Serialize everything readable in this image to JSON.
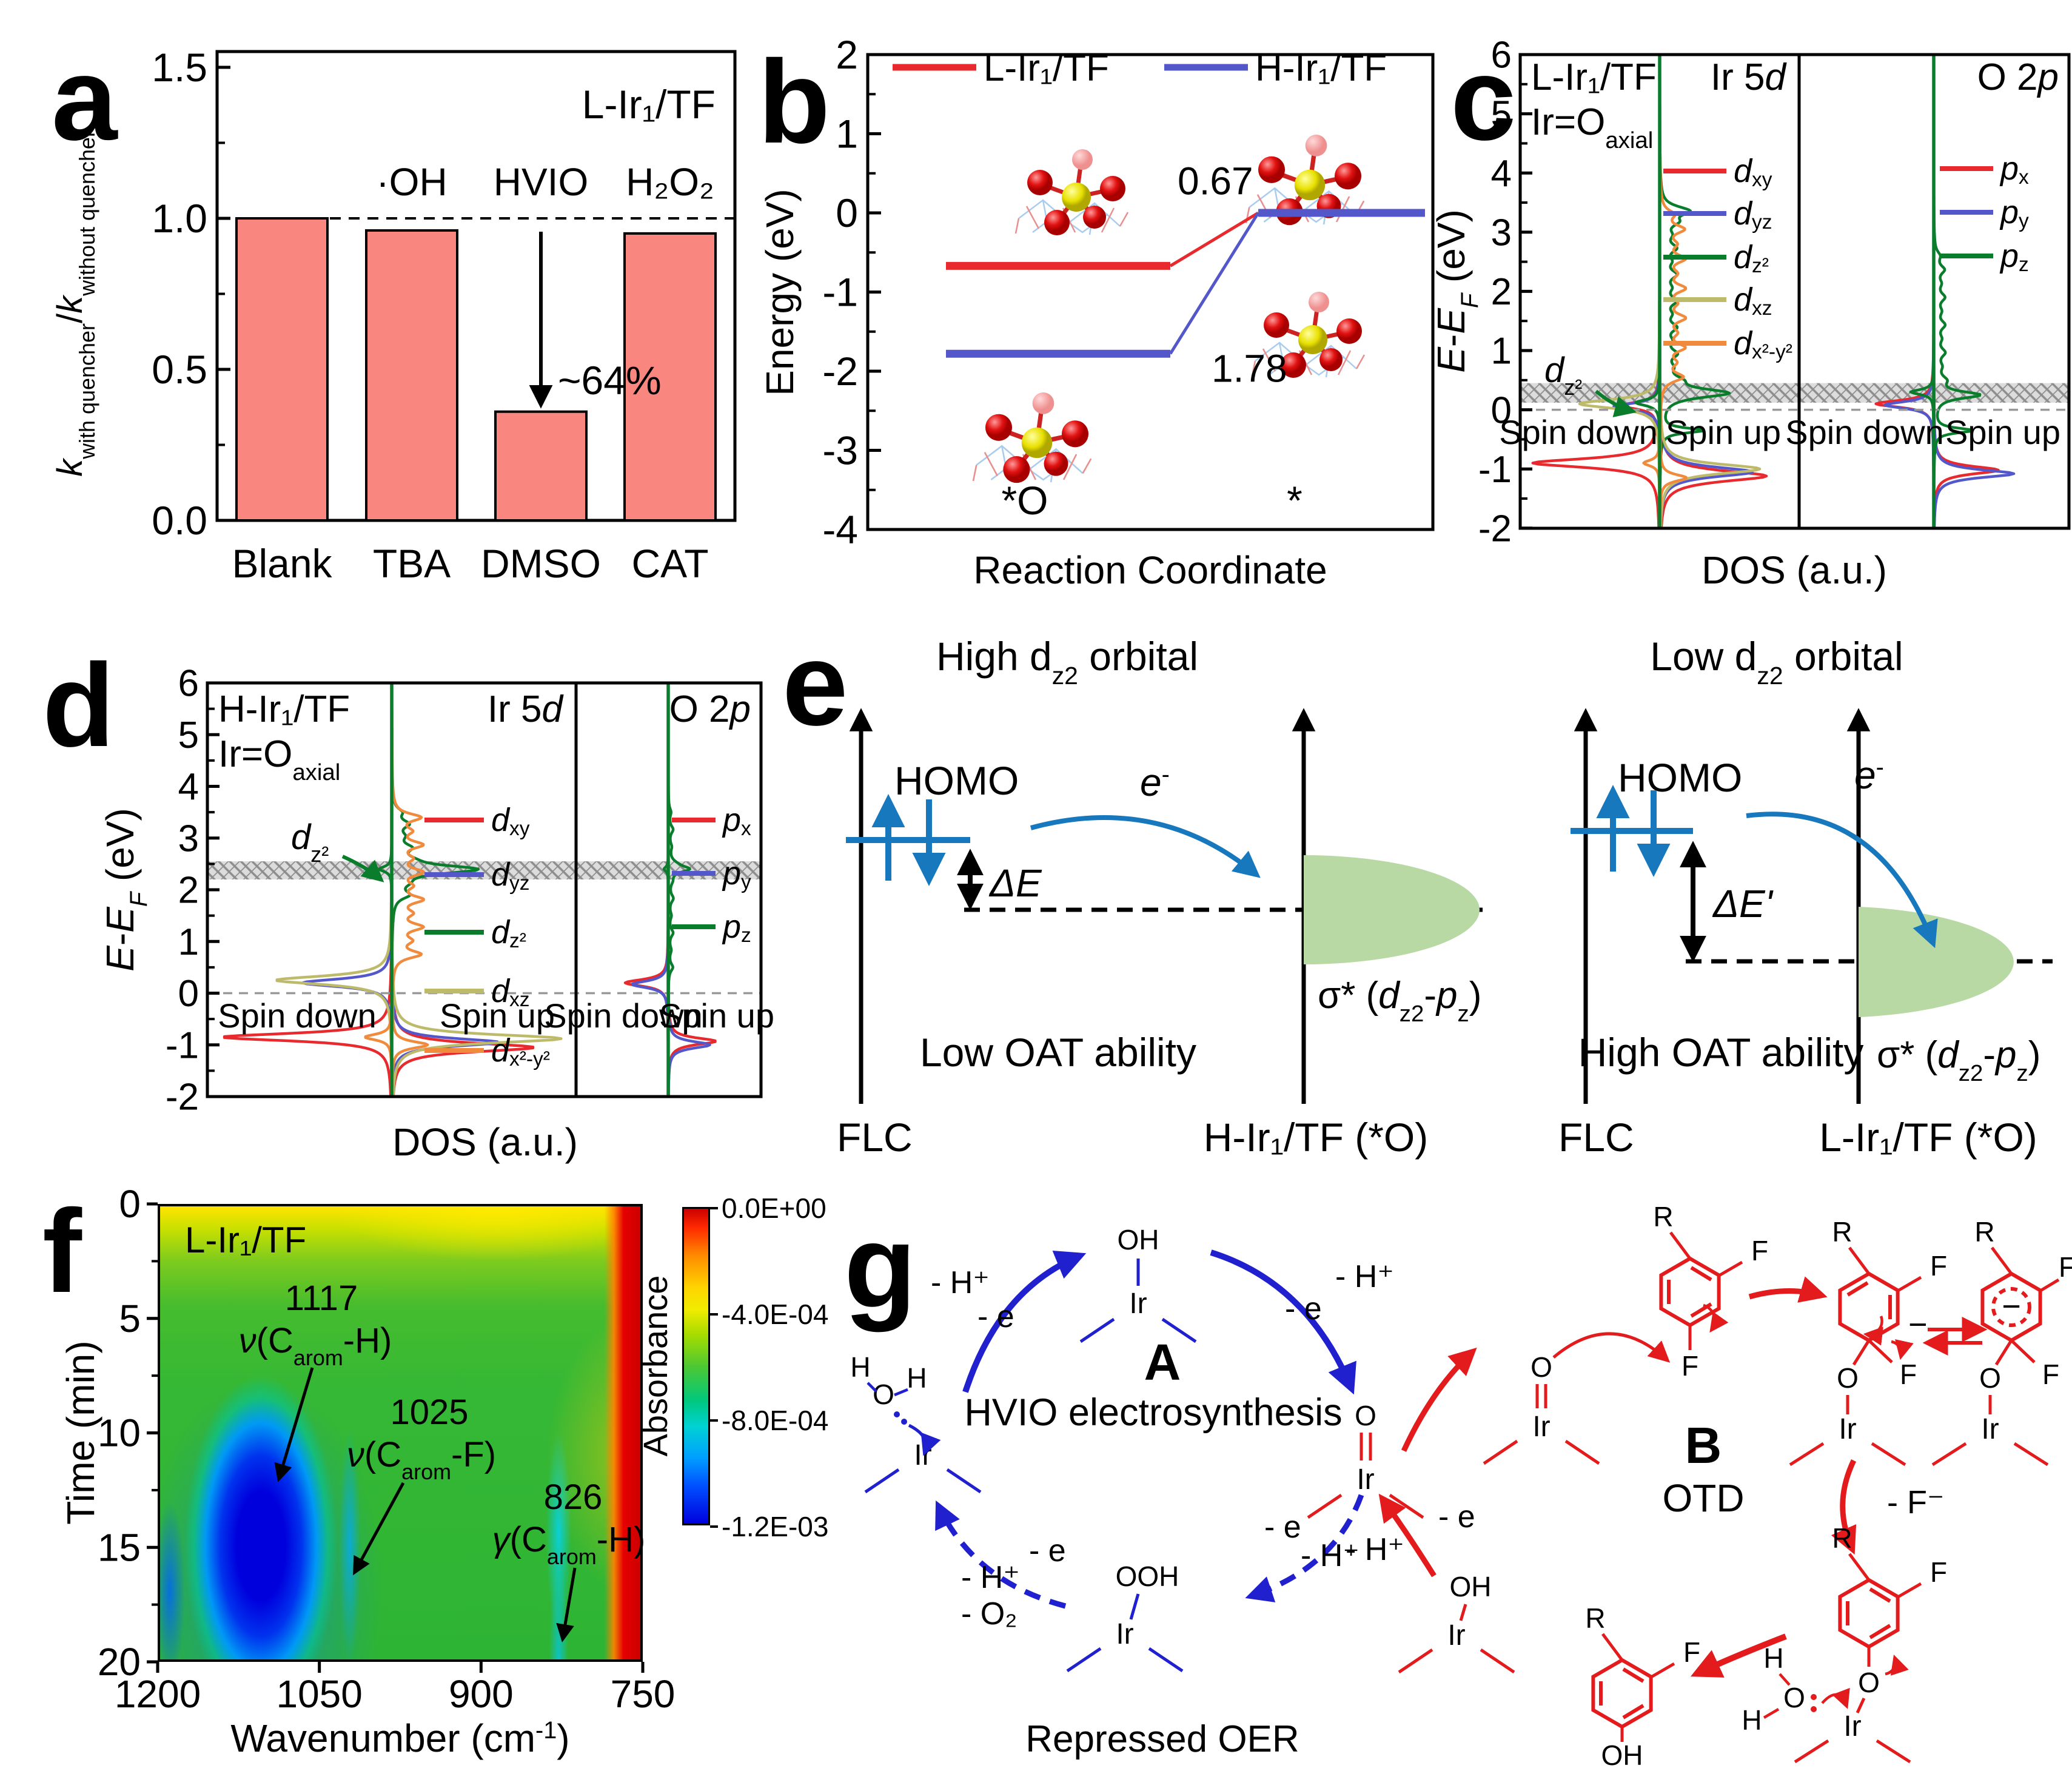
{
  "colors": {
    "bar": "#f9867f",
    "red": "#e8292d",
    "blue": "#5457c9",
    "green": "#0a7d2c",
    "olive": "#bdba6a",
    "orange": "#f08b3e",
    "gblue": "#2020cf",
    "gred": "#e31b1c",
    "eblue": "#1878be",
    "ellipse": "#b9d9a4",
    "hatch": "#9a9a9a"
  },
  "panels": {
    "a": {
      "letter": "a",
      "corner": "L-Ir₁/TF",
      "ylabel_parts": [
        {
          "t": "k",
          "i": true
        },
        {
          "t": "with quencher",
          "sub": true
        },
        {
          "t": "/"
        },
        {
          "t": "k",
          "i": true
        },
        {
          "t": "without quencher",
          "sub": true
        }
      ]
    },
    "b": {
      "letter": "b",
      "ylabel": "Energy (eV)",
      "xlabel": "Reaction Coordinate",
      "legend": [
        {
          "label": "L-Ir₁/TF"
        },
        {
          "label": "H-Ir₁/TF"
        }
      ],
      "state_labels": [
        "*O",
        "*"
      ]
    },
    "c": {
      "letter": "c",
      "corner1": "L-Ir₁/TF",
      "corner2_parts": [
        {
          "t": "Ir=O"
        },
        {
          "t": "axial",
          "sub": true
        }
      ],
      "sub1_title_parts": [
        {
          "t": "Ir 5"
        },
        {
          "t": "d",
          "i": true
        }
      ],
      "sub2_title_parts": [
        {
          "t": "O 2"
        },
        {
          "t": "p",
          "i": true
        }
      ],
      "spin_down": "Spin down",
      "spin_up": "Spin up",
      "dz2_parts": [
        {
          "t": "d",
          "i": true
        },
        {
          "t": "z²",
          "sub": true
        }
      ],
      "xlabel": "DOS (a.u.)",
      "ylabel_parts": [
        {
          "t": "E",
          "i": true
        },
        {
          "t": "-"
        },
        {
          "t": "E",
          "i": true
        },
        {
          "t": "F",
          "i": true,
          "sub": true
        },
        {
          "t": " (eV)"
        }
      ]
    },
    "d": {
      "letter": "d",
      "corner1": "H-Ir₁/TF",
      "corner2_parts": [
        {
          "t": "Ir=O"
        },
        {
          "t": "axial",
          "sub": true
        }
      ],
      "sub1_title_parts": [
        {
          "t": "Ir 5"
        },
        {
          "t": "d",
          "i": true
        }
      ],
      "sub2_title_parts": [
        {
          "t": "O 2"
        },
        {
          "t": "p",
          "i": true
        }
      ],
      "spin_down": "Spin down",
      "spin_up": "Spin up",
      "dz2_parts": [
        {
          "t": "d",
          "i": true
        },
        {
          "t": "z²",
          "sub": true
        }
      ],
      "xlabel": "DOS (a.u.)",
      "ylabel_parts": [
        {
          "t": "E",
          "i": true
        },
        {
          "t": "-"
        },
        {
          "t": "E",
          "i": true
        },
        {
          "t": "F",
          "i": true,
          "sub": true
        },
        {
          "t": " (eV)"
        }
      ]
    },
    "e": {
      "letter": "e",
      "left": {
        "title_parts": [
          {
            "t": "High d"
          },
          {
            "t": "z2",
            "sub": true
          },
          {
            "t": " orbital"
          }
        ],
        "homo": "HOMO",
        "delta_parts": [
          {
            "t": "ΔE",
            "i": true
          }
        ],
        "electron_parts": [
          {
            "t": "e",
            "i": true
          },
          {
            "t": "-",
            "sup": true
          }
        ],
        "sigma_parts": [
          {
            "t": "σ* ("
          },
          {
            "t": "d",
            "i": true
          },
          {
            "t": "z2",
            "sub": true
          },
          {
            "t": "-"
          },
          {
            "t": "p",
            "i": true
          },
          {
            "t": "z",
            "sub": true
          },
          {
            "t": ")"
          }
        ],
        "ability": "Low OAT ability",
        "left_axis": "FLC",
        "right_axis": "H-Ir₁/TF (*O)"
      },
      "right": {
        "title_parts": [
          {
            "t": "Low d"
          },
          {
            "t": "z2",
            "sub": true
          },
          {
            "t": " orbital"
          }
        ],
        "homo": "HOMO",
        "delta_parts": [
          {
            "t": "ΔE'",
            "i": true
          }
        ],
        "electron_parts": [
          {
            "t": "e",
            "i": true
          },
          {
            "t": "-",
            "sup": true
          }
        ],
        "sigma_parts": [
          {
            "t": "σ* ("
          },
          {
            "t": "d",
            "i": true
          },
          {
            "t": "z2",
            "sub": true
          },
          {
            "t": "-"
          },
          {
            "t": "p",
            "i": true
          },
          {
            "t": "z",
            "sub": true
          },
          {
            "t": ")"
          }
        ],
        "ability": "High OAT ability",
        "left_axis": "FLC",
        "right_axis": "L-Ir₁/TF (*O)"
      }
    },
    "g": {
      "letter": "g",
      "cycle_a": {
        "label": "A",
        "title": "HVIO electrosynthesis",
        "bottom": "Repressed OER",
        "oh": "OH",
        "ir": "Ir",
        "o": "O",
        "ooh": "OOH",
        "h": "H",
        "steps": {
          "tl1": "- H⁺",
          "tl2": "- e",
          "tr1": "- H⁺",
          "tr2": "- e",
          "br1": "- e",
          "br2": "- H⁺",
          "bl1": "- e",
          "bl2": "- H⁺",
          "bl3": "- O₂"
        }
      },
      "cycle_b": {
        "label": "B",
        "title": "OTD",
        "minus_f": "- F⁻",
        "step_e": "- e",
        "step_h": "- H⁺",
        "r": "R",
        "f": "F",
        "o": "O",
        "oh": "OH",
        "ir": "Ir",
        "h": "H",
        "minus": "−"
      }
    }
  },
  "chart_data": [
    {
      "id": "a",
      "type": "bar",
      "categories": [
        "Blank",
        "TBA",
        "DMSO",
        "CAT"
      ],
      "values": [
        1.0,
        0.96,
        0.36,
        0.95
      ],
      "ylim": [
        0,
        1.55
      ],
      "yticks": [
        0,
        0.5,
        1,
        1.5
      ],
      "ytick_labels": [
        "0.0",
        "0.5",
        "1.0",
        "1.5"
      ],
      "yminor": [
        0.25,
        0.75,
        1.25
      ],
      "reference_line": 1.0,
      "quencher_labels": [
        "·OH",
        "HVIO",
        "H₂O₂"
      ],
      "drop_annotation": "~64%",
      "sample_label": "L-Ir₁/TF",
      "ylabel": "k(with quencher)/k(without quencher)"
    },
    {
      "id": "b",
      "type": "line",
      "ylim": [
        -4,
        2
      ],
      "yticks": [
        2,
        1,
        0,
        -1,
        -2,
        -3,
        -4
      ],
      "ytick_labels": [
        "2",
        "1",
        "0",
        "-1",
        "-2",
        "-3",
        "-4"
      ],
      "yminor": [
        1.5,
        0.5,
        -0.5,
        -1.5,
        -2.5,
        -3.5
      ],
      "xlabel": "Reaction Coordinate",
      "x_states": [
        "*O",
        "*"
      ],
      "series": [
        {
          "name": "L-Ir₁/TF",
          "color_key": "red",
          "values": [
            -0.67,
            0
          ],
          "barrier_label": "0.67"
        },
        {
          "name": "H-Ir₁/TF",
          "color_key": "blue",
          "values": [
            -1.78,
            0
          ],
          "barrier_label": "1.78"
        }
      ]
    },
    {
      "id": "c",
      "type": "dos",
      "sample": "L-Ir₁/TF",
      "ylim": [
        -2,
        6
      ],
      "yticks": [
        6,
        5,
        4,
        3,
        2,
        1,
        0,
        -1,
        -2
      ],
      "ytick_labels": [
        "6",
        "5",
        "4",
        "3",
        "2",
        "1",
        "0",
        "-1",
        "-2"
      ],
      "yminor": [
        5.5,
        4.5,
        3.5,
        2.5,
        1.5,
        0.5,
        -0.5,
        -1.5
      ],
      "xlabel": "DOS (a.u.)",
      "fermi_band": [
        0.12,
        0.45
      ],
      "subpanels": [
        {
          "key": "Ir5d",
          "orbitals": [
            {
              "key": "dxy",
              "color_key": "red",
              "down": [
                [
                  -0.9,
                  0.95,
                  0.09
                ],
                [
                  0.07,
                  0.28,
                  0.07
                ]
              ],
              "up": [
                [
                  -1.12,
                  0.8,
                  0.11
                ]
              ]
            },
            {
              "key": "dyz",
              "color_key": "blue",
              "down": [
                [
                  0.05,
                  0.35,
                  0.07
                ]
              ],
              "up": [
                [
                  -1.05,
                  0.7,
                  0.1
                ]
              ]
            },
            {
              "key": "dz2",
              "color_key": "green",
              "down": [
                [
                  0.12,
                  0.18,
                  0.06
                ]
              ],
              "up": [
                [
                  -0.35,
                  0.32,
                  0.05
                ],
                [
                  0.28,
                  0.5,
                  0.09
                ],
                [
                  3.35,
                  0.16,
                  0.08
                ]
              ],
              "up_comb": {
                "from": 0.5,
                "to": 3.4,
                "amp": 0.1,
                "n": 14
              }
            },
            {
              "key": "dxz",
              "color_key": "olive",
              "down": [
                [
                  0.1,
                  0.6,
                  0.09
                ]
              ],
              "up": [
                [
                  -1.0,
                  0.75,
                  0.1
                ]
              ]
            },
            {
              "key": "dx2y2",
              "color_key": "orange",
              "down": [
                [
                  -0.9,
                  0.12,
                  0.06
                ]
              ],
              "up": [
                [
                  -1.15,
                  0.2,
                  0.07
                ]
              ],
              "up_comb": {
                "from": 0.55,
                "to": 3.3,
                "amp": 0.16,
                "n": 12
              }
            }
          ]
        },
        {
          "key": "O2p",
          "orbitals": [
            {
              "key": "px",
              "color_key": "red",
              "down": [
                [
                  0.1,
                  0.45,
                  0.07
                ]
              ],
              "up": [
                [
                  -1.02,
                  0.5,
                  0.08
                ]
              ]
            },
            {
              "key": "py",
              "color_key": "blue",
              "down": [
                [
                  0.08,
                  0.38,
                  0.07
                ]
              ],
              "up": [
                [
                  -1.08,
                  0.62,
                  0.08
                ]
              ]
            },
            {
              "key": "pz",
              "color_key": "green",
              "down": [
                [
                  0.3,
                  0.18,
                  0.05
                ]
              ],
              "up": [
                [
                  -0.35,
                  0.3,
                  0.05
                ],
                [
                  0.25,
                  0.35,
                  0.07
                ]
              ],
              "up_comb": {
                "from": 0.5,
                "to": 2.6,
                "amp": 0.07,
                "n": 10
              }
            }
          ]
        }
      ]
    },
    {
      "id": "d",
      "type": "dos",
      "sample": "H-Ir₁/TF",
      "ylim": [
        -2,
        6
      ],
      "yticks": [
        6,
        5,
        4,
        3,
        2,
        1,
        0,
        -1,
        -2
      ],
      "ytick_labels": [
        "6",
        "5",
        "4",
        "3",
        "2",
        "1",
        "0",
        "-1",
        "-2"
      ],
      "yminor": [
        5.5,
        4.5,
        3.5,
        2.5,
        1.5,
        0.5,
        -0.5,
        -1.5
      ],
      "xlabel": "DOS (a.u.)",
      "fermi_band": [
        2.2,
        2.55
      ],
      "subpanels": [
        {
          "key": "Ir5d",
          "orbitals": [
            {
              "key": "dxy",
              "color_key": "red",
              "down": [
                [
                  -0.85,
                  0.95,
                  0.09
                ]
              ],
              "up": [
                [
                  -1.05,
                  0.8,
                  0.1
                ]
              ]
            },
            {
              "key": "dyz",
              "color_key": "blue",
              "down": [
                [
                  0.2,
                  0.5,
                  0.09
                ]
              ],
              "up": [
                [
                  -0.95,
                  0.6,
                  0.09
                ]
              ]
            },
            {
              "key": "dz2",
              "color_key": "green",
              "down": [
                [
                  2.4,
                  0.07,
                  0.06
                ]
              ],
              "up": [
                [
                  2.4,
                  0.4,
                  0.09
                ]
              ],
              "up_comb": {
                "from": 1.9,
                "to": 3.5,
                "amp": 0.08,
                "n": 8
              }
            },
            {
              "key": "dxz",
              "color_key": "olive",
              "down": [
                [
                  0.25,
                  0.65,
                  0.1
                ]
              ],
              "up": [
                [
                  -0.88,
                  0.95,
                  0.1
                ]
              ]
            },
            {
              "key": "dx2y2",
              "color_key": "orange",
              "down": [
                [
                  -0.85,
                  0.15,
                  0.07
                ]
              ],
              "up": [
                [
                  -1.0,
                  0.2,
                  0.08
                ]
              ],
              "up_comb": {
                "from": 0.75,
                "to": 3.4,
                "amp": 0.15,
                "n": 11
              }
            }
          ]
        },
        {
          "key": "O2p",
          "orbitals": [
            {
              "key": "px",
              "color_key": "red",
              "down": [
                [
                  0.2,
                  0.5,
                  0.08
                ]
              ],
              "up": [
                [
                  -0.93,
                  0.55,
                  0.08
                ]
              ]
            },
            {
              "key": "py",
              "color_key": "blue",
              "down": [
                [
                  0.17,
                  0.42,
                  0.08
                ]
              ],
              "up": [
                [
                  -1.0,
                  0.48,
                  0.08
                ]
              ]
            },
            {
              "key": "pz",
              "color_key": "green",
              "down": [
                [
                  2.4,
                  0.05,
                  0.05
                ]
              ],
              "up": [
                [
                  2.4,
                  0.22,
                  0.07
                ]
              ],
              "up_comb": {
                "from": 0.5,
                "to": 3.5,
                "amp": 0.05,
                "n": 10
              }
            }
          ]
        }
      ]
    },
    {
      "id": "f",
      "type": "heatmap",
      "sample": "L-Ir₁/TF",
      "xlabel_parts": [
        {
          "t": "Wavenumber (cm"
        },
        {
          "t": "-1",
          "sup": true
        },
        {
          "t": ")"
        }
      ],
      "ylabel": "Time (min)",
      "x_range": [
        1200,
        750
      ],
      "x_reversed": true,
      "xticks": [
        1200,
        1050,
        900,
        750
      ],
      "y_range": [
        0,
        20
      ],
      "yticks": [
        0,
        5,
        10,
        15,
        20
      ],
      "yminor": [
        2.5,
        7.5,
        12.5,
        17.5
      ],
      "colorbar": {
        "title": "Absorbance",
        "tick_labels": [
          "0.0E+00",
          "-4.0E-04",
          "-8.0E-04",
          "-1.2E-03"
        ]
      },
      "peaks": [
        {
          "wavenumber": "1117",
          "assignment_parts": [
            {
              "t": "ν",
              "i": true
            },
            {
              "t": "(C"
            },
            {
              "t": "arom",
              "sub": true
            },
            {
              "t": "-H)"
            }
          ]
        },
        {
          "wavenumber": "1025",
          "assignment_parts": [
            {
              "t": "ν",
              "i": true
            },
            {
              "t": "(C"
            },
            {
              "t": "arom",
              "sub": true
            },
            {
              "t": "-F)"
            }
          ]
        },
        {
          "wavenumber": "826",
          "assignment_parts": [
            {
              "t": "γ",
              "i": true
            },
            {
              "t": "(C"
            },
            {
              "t": "arom",
              "sub": true
            },
            {
              "t": "-H)"
            }
          ]
        }
      ]
    }
  ]
}
